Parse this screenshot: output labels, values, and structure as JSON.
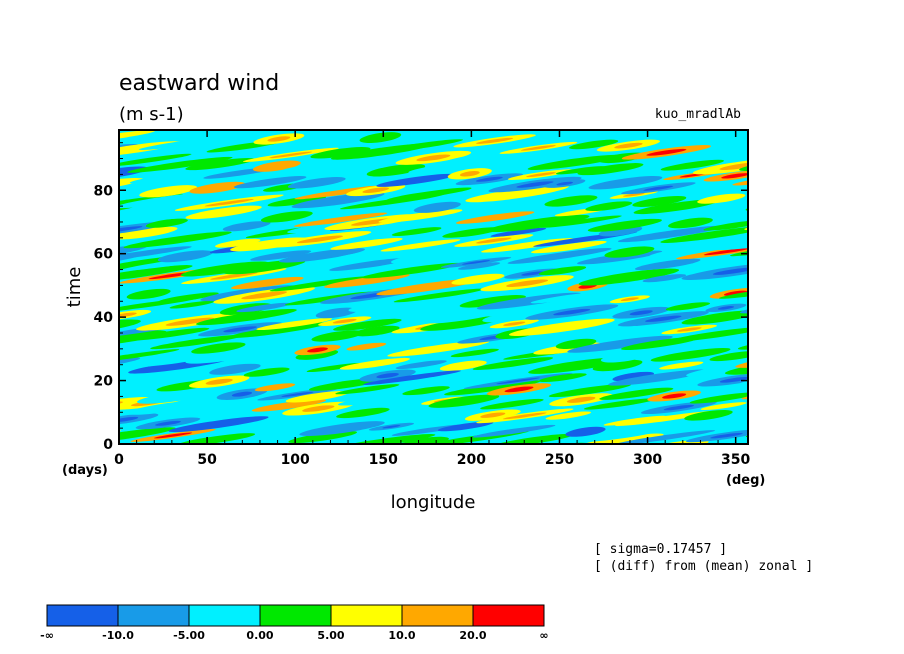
{
  "chart_data": {
    "type": "heatmap",
    "title": "eastward wind",
    "subtitle": "(m s-1)",
    "run_label": "kuo_mradlAb",
    "xlabel": "longitude",
    "xunit": "(deg)",
    "ylabel": "time",
    "yunit": "(days)",
    "xlim": [
      0,
      357
    ],
    "ylim": [
      0,
      99
    ],
    "xticks": [
      0,
      50,
      100,
      150,
      200,
      250,
      300,
      350
    ],
    "yticks": [
      0,
      20,
      40,
      60,
      80
    ],
    "notes": [
      "[ sigma=0.17457 ]",
      "[ (diff) from (mean) zonal ]"
    ],
    "colorbar": {
      "levels": [
        "-∞",
        "-10.0",
        "-5.00",
        "0.00",
        "5.00",
        "10.0",
        "20.0",
        "∞"
      ],
      "colors": [
        "#1560e8",
        "#189be8",
        "#00f0ff",
        "#00e800",
        "#ffff00",
        "#ffa800",
        "#ff0000"
      ]
    },
    "bands": [
      {
        "t": 3,
        "kind": "warm"
      },
      {
        "t": 7,
        "kind": "cool"
      },
      {
        "t": 12,
        "kind": "warm"
      },
      {
        "t": 16,
        "kind": "mixed"
      },
      {
        "t": 20,
        "kind": "warm"
      },
      {
        "t": 24,
        "kind": "cool"
      },
      {
        "t": 28,
        "kind": "mixed"
      },
      {
        "t": 32,
        "kind": "warm"
      },
      {
        "t": 36,
        "kind": "mixed"
      },
      {
        "t": 40,
        "kind": "warm"
      },
      {
        "t": 44,
        "kind": "cool"
      },
      {
        "t": 48,
        "kind": "mixed"
      },
      {
        "t": 53,
        "kind": "warm"
      },
      {
        "t": 57,
        "kind": "mixed"
      },
      {
        "t": 61,
        "kind": "cool"
      },
      {
        "t": 65,
        "kind": "warm"
      },
      {
        "t": 69,
        "kind": "cool"
      },
      {
        "t": 73,
        "kind": "warm"
      },
      {
        "t": 77,
        "kind": "mixed"
      },
      {
        "t": 81,
        "kind": "warm"
      },
      {
        "t": 85,
        "kind": "cool"
      },
      {
        "t": 89,
        "kind": "warm"
      },
      {
        "t": 93,
        "kind": "mixed"
      },
      {
        "t": 97,
        "kind": "warm"
      }
    ]
  }
}
